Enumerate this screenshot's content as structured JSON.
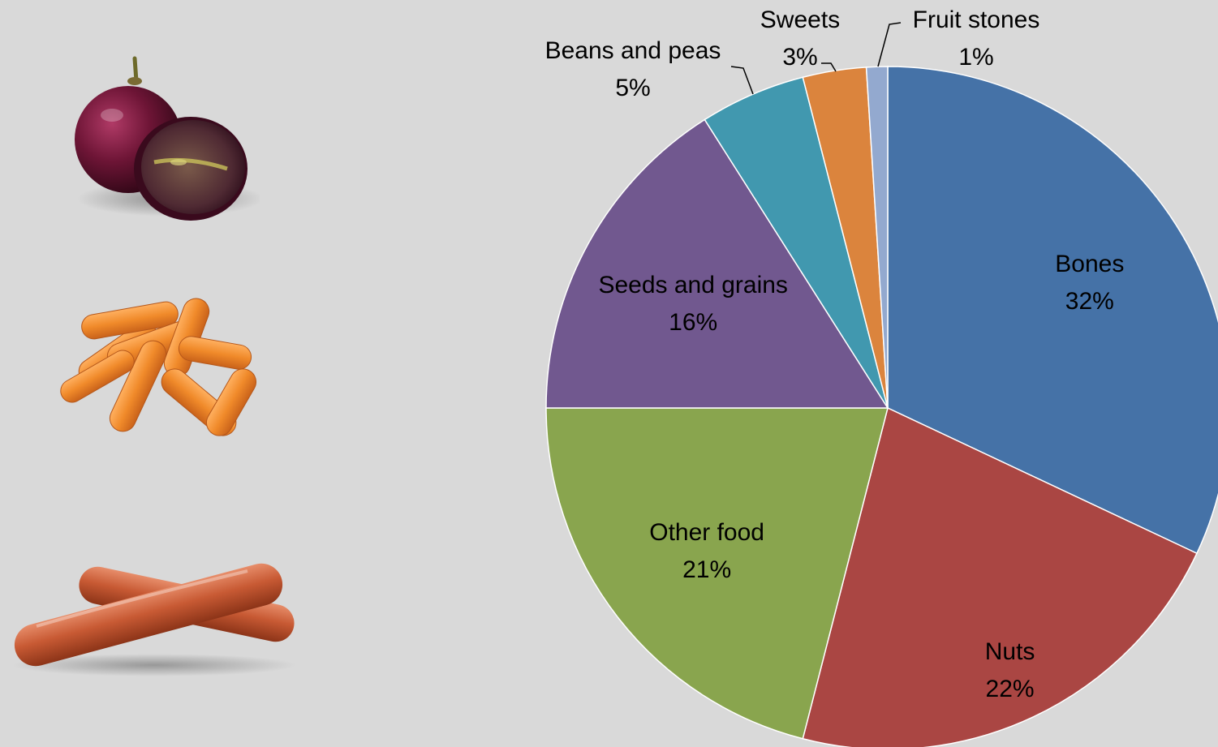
{
  "images": [
    {
      "name": "grapes-image",
      "icon": "grape-icon"
    },
    {
      "name": "baby-carrots-image",
      "icon": "carrot-icon"
    },
    {
      "name": "sausages-image",
      "icon": "sausage-icon"
    }
  ],
  "chart_data": {
    "type": "pie",
    "title": "",
    "start_angle_deg": 0,
    "direction": "clockwise",
    "slices": [
      {
        "label": "Bones",
        "value": 32,
        "pct_label": "32%",
        "color": "#4572a7"
      },
      {
        "label": "Nuts",
        "value": 22,
        "pct_label": "22%",
        "color": "#aa4643"
      },
      {
        "label": "Other food",
        "value": 21,
        "pct_label": "21%",
        "color": "#89a54e"
      },
      {
        "label": "Seeds and grains",
        "value": 16,
        "pct_label": "16%",
        "color": "#71588f"
      },
      {
        "label": "Beans and peas",
        "value": 5,
        "pct_label": "5%",
        "color": "#4198af"
      },
      {
        "label": "Sweets",
        "value": 3,
        "pct_label": "3%",
        "color": "#db843d"
      },
      {
        "label": "Fruit stones",
        "value": 1,
        "pct_label": "1%",
        "color": "#93a9cf"
      }
    ]
  }
}
